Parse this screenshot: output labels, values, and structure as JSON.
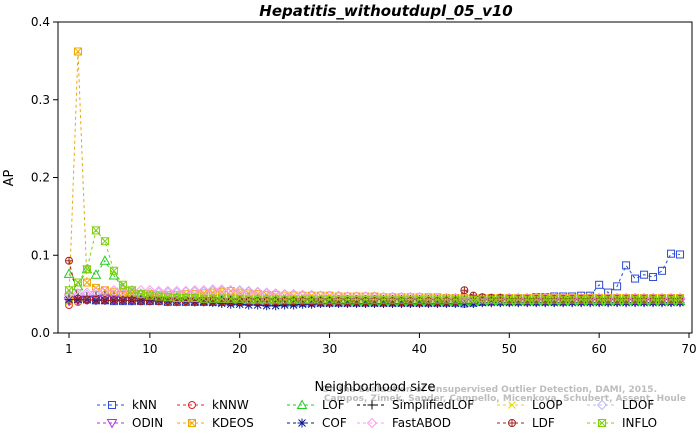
{
  "chart_data": {
    "type": "line",
    "title": "Hepatitis_withoutdupl_05_v10",
    "xlabel": "Neighborhood size",
    "ylabel": "AP",
    "xlim": [
      1,
      70
    ],
    "ylim": [
      0,
      0.4
    ],
    "xticks": [
      "1",
      "10",
      "20",
      "30",
      "40",
      "50",
      "60",
      "70"
    ],
    "yticks": [
      "0.0",
      "0.1",
      "0.2",
      "0.3",
      "0.4"
    ],
    "watermark": [
      "Campos, Zimek, Sander, Campello, Micenkova, Schubert, Assent, Houle",
      "On the Evaluation of Unsupervised Outlier Detection, DAMI, 2015."
    ],
    "legend_position": "bottom",
    "series": [
      {
        "name": "kNN",
        "color": "#2d4bd6",
        "marker": "square",
        "values": [
          0.043,
          0.044,
          0.043,
          0.042,
          0.042,
          0.041,
          0.041,
          0.041,
          0.041,
          0.041,
          0.041,
          0.04,
          0.04,
          0.04,
          0.04,
          0.04,
          0.04,
          0.04,
          0.04,
          0.04,
          0.04,
          0.04,
          0.039,
          0.039,
          0.039,
          0.039,
          0.039,
          0.039,
          0.039,
          0.039,
          0.039,
          0.039,
          0.039,
          0.039,
          0.039,
          0.039,
          0.039,
          0.039,
          0.039,
          0.039,
          0.039,
          0.039,
          0.039,
          0.039,
          0.038,
          0.039,
          0.04,
          0.041,
          0.042,
          0.043,
          0.044,
          0.045,
          0.046,
          0.046,
          0.047,
          0.047,
          0.047,
          0.048,
          0.048,
          0.062,
          0.052,
          0.06,
          0.087,
          0.07,
          0.075,
          0.072,
          0.08,
          0.102,
          0.101
        ]
      },
      {
        "name": "kNNW",
        "color": "#e02020",
        "marker": "circle",
        "values": [
          0.036,
          0.04,
          0.042,
          0.043,
          0.043,
          0.043,
          0.042,
          0.042,
          0.042,
          0.041,
          0.041,
          0.041,
          0.041,
          0.041,
          0.041,
          0.04,
          0.04,
          0.04,
          0.04,
          0.04,
          0.04,
          0.04,
          0.04,
          0.039,
          0.039,
          0.039,
          0.039,
          0.039,
          0.039,
          0.039,
          0.039,
          0.039,
          0.039,
          0.039,
          0.039,
          0.039,
          0.039,
          0.039,
          0.039,
          0.039,
          0.039,
          0.039,
          0.039,
          0.04,
          0.04,
          0.04,
          0.04,
          0.04,
          0.04,
          0.04,
          0.04,
          0.04,
          0.04,
          0.04,
          0.04,
          0.04,
          0.041,
          0.041,
          0.041,
          0.041,
          0.041,
          0.041,
          0.041,
          0.041,
          0.041,
          0.041,
          0.041,
          0.041,
          0.041
        ]
      },
      {
        "name": "LOF",
        "color": "#22cc22",
        "marker": "triangle-up",
        "values": [
          0.076,
          0.06,
          0.082,
          0.075,
          0.093,
          0.074,
          0.058,
          0.052,
          0.05,
          0.048,
          0.047,
          0.046,
          0.046,
          0.045,
          0.045,
          0.045,
          0.044,
          0.044,
          0.044,
          0.043,
          0.043,
          0.043,
          0.043,
          0.042,
          0.042,
          0.042,
          0.042,
          0.042,
          0.042,
          0.042,
          0.042,
          0.042,
          0.041,
          0.041,
          0.041,
          0.041,
          0.041,
          0.041,
          0.041,
          0.041,
          0.041,
          0.041,
          0.041,
          0.041,
          0.041,
          0.041,
          0.041,
          0.041,
          0.041,
          0.041,
          0.041,
          0.041,
          0.041,
          0.041,
          0.041,
          0.041,
          0.041,
          0.041,
          0.041,
          0.041,
          0.041,
          0.041,
          0.041,
          0.041,
          0.041,
          0.041,
          0.041,
          0.041,
          0.041
        ]
      },
      {
        "name": "SimplifiedLOF",
        "color": "#000000",
        "marker": "plus",
        "values": [
          0.045,
          0.046,
          0.047,
          0.048,
          0.05,
          0.048,
          0.046,
          0.045,
          0.044,
          0.044,
          0.044,
          0.044,
          0.044,
          0.044,
          0.044,
          0.044,
          0.044,
          0.044,
          0.043,
          0.043,
          0.043,
          0.043,
          0.043,
          0.043,
          0.043,
          0.043,
          0.043,
          0.043,
          0.043,
          0.043,
          0.043,
          0.043,
          0.043,
          0.043,
          0.043,
          0.043,
          0.043,
          0.043,
          0.043,
          0.043,
          0.043,
          0.043,
          0.043,
          0.043,
          0.043,
          0.043,
          0.043,
          0.043,
          0.043,
          0.043,
          0.043,
          0.043,
          0.043,
          0.043,
          0.043,
          0.043,
          0.043,
          0.043,
          0.043,
          0.043,
          0.043,
          0.043,
          0.043,
          0.043,
          0.043,
          0.043,
          0.043,
          0.043,
          0.043
        ]
      },
      {
        "name": "LoOP",
        "color": "#e6d800",
        "marker": "x",
        "values": [
          0.04,
          0.041,
          0.042,
          0.042,
          0.043,
          0.043,
          0.043,
          0.043,
          0.043,
          0.043,
          0.042,
          0.042,
          0.042,
          0.042,
          0.042,
          0.042,
          0.042,
          0.042,
          0.042,
          0.042,
          0.042,
          0.042,
          0.042,
          0.042,
          0.042,
          0.042,
          0.042,
          0.042,
          0.042,
          0.042,
          0.042,
          0.042,
          0.042,
          0.042,
          0.042,
          0.042,
          0.042,
          0.042,
          0.042,
          0.042,
          0.042,
          0.042,
          0.042,
          0.042,
          0.042,
          0.042,
          0.042,
          0.042,
          0.042,
          0.042,
          0.042,
          0.042,
          0.042,
          0.042,
          0.042,
          0.042,
          0.042,
          0.042,
          0.042,
          0.042,
          0.042,
          0.042,
          0.042,
          0.042,
          0.042,
          0.042,
          0.042,
          0.042,
          0.042
        ]
      },
      {
        "name": "LDOF",
        "color": "#b8b8ff",
        "marker": "diamond",
        "values": [
          0.048,
          0.048,
          0.049,
          0.049,
          0.05,
          0.05,
          0.05,
          0.051,
          0.051,
          0.052,
          0.052,
          0.052,
          0.052,
          0.053,
          0.053,
          0.053,
          0.054,
          0.054,
          0.054,
          0.055,
          0.054,
          0.053,
          0.052,
          0.051,
          0.05,
          0.05,
          0.049,
          0.049,
          0.048,
          0.048,
          0.048,
          0.047,
          0.047,
          0.047,
          0.047,
          0.046,
          0.046,
          0.046,
          0.046,
          0.046,
          0.045,
          0.045,
          0.045,
          0.045,
          0.045,
          0.045,
          0.045,
          0.045,
          0.045,
          0.045,
          0.045,
          0.045,
          0.045,
          0.045,
          0.045,
          0.045,
          0.045,
          0.045,
          0.045,
          0.045,
          0.045,
          0.045,
          0.045,
          0.045,
          0.045,
          0.045,
          0.045,
          0.045,
          0.045
        ]
      },
      {
        "name": "ODIN",
        "color": "#b030e0",
        "marker": "triangle-down",
        "values": [
          0.041,
          0.042,
          0.043,
          0.043,
          0.044,
          0.043,
          0.043,
          0.042,
          0.042,
          0.042,
          0.042,
          0.041,
          0.041,
          0.041,
          0.041,
          0.041,
          0.041,
          0.04,
          0.04,
          0.04,
          0.04,
          0.04,
          0.04,
          0.04,
          0.04,
          0.04,
          0.04,
          0.04,
          0.04,
          0.04,
          0.04,
          0.04,
          0.04,
          0.04,
          0.04,
          0.04,
          0.04,
          0.04,
          0.04,
          0.04,
          0.04,
          0.04,
          0.04,
          0.04,
          0.04,
          0.04,
          0.04,
          0.04,
          0.04,
          0.04,
          0.04,
          0.04,
          0.04,
          0.04,
          0.04,
          0.04,
          0.04,
          0.04,
          0.04,
          0.04,
          0.04,
          0.04,
          0.04,
          0.04,
          0.04,
          0.04,
          0.04,
          0.04,
          0.04
        ]
      },
      {
        "name": "KDEOS",
        "color": "#f0a800",
        "marker": "box-x",
        "values": [
          0.043,
          0.362,
          0.065,
          0.058,
          0.055,
          0.053,
          0.052,
          0.051,
          0.05,
          0.05,
          0.049,
          0.049,
          0.049,
          0.05,
          0.05,
          0.051,
          0.052,
          0.053,
          0.054,
          0.052,
          0.051,
          0.05,
          0.049,
          0.049,
          0.048,
          0.048,
          0.048,
          0.048,
          0.048,
          0.048,
          0.047,
          0.047,
          0.047,
          0.047,
          0.047,
          0.046,
          0.046,
          0.046,
          0.046,
          0.046,
          0.046,
          0.046,
          0.045,
          0.045,
          0.045,
          0.045,
          0.045,
          0.045,
          0.045,
          0.045,
          0.045,
          0.045,
          0.045,
          0.045,
          0.045,
          0.045,
          0.045,
          0.045,
          0.045,
          0.045,
          0.045,
          0.045,
          0.045,
          0.045,
          0.045,
          0.045,
          0.045,
          0.045,
          0.045
        ]
      },
      {
        "name": "COF",
        "color": "#0a1a8c",
        "marker": "asterisk",
        "values": [
          0.043,
          0.043,
          0.043,
          0.042,
          0.042,
          0.042,
          0.042,
          0.042,
          0.042,
          0.042,
          0.042,
          0.041,
          0.041,
          0.041,
          0.04,
          0.04,
          0.039,
          0.038,
          0.037,
          0.037,
          0.036,
          0.036,
          0.035,
          0.035,
          0.036,
          0.036,
          0.037,
          0.037,
          0.038,
          0.038,
          0.038,
          0.038,
          0.038,
          0.038,
          0.038,
          0.038,
          0.038,
          0.038,
          0.038,
          0.038,
          0.038,
          0.038,
          0.038,
          0.038,
          0.038,
          0.038,
          0.039,
          0.039,
          0.039,
          0.039,
          0.039,
          0.039,
          0.039,
          0.039,
          0.039,
          0.039,
          0.039,
          0.039,
          0.039,
          0.039,
          0.039,
          0.039,
          0.039,
          0.039,
          0.039,
          0.039,
          0.039,
          0.039,
          0.039
        ]
      },
      {
        "name": "FastABOD",
        "color": "#ff9cf2",
        "marker": "diamond",
        "values": [
          0.05,
          0.051,
          0.052,
          0.053,
          0.054,
          0.055,
          0.055,
          0.055,
          0.055,
          0.055,
          0.054,
          0.054,
          0.054,
          0.054,
          0.055,
          0.055,
          0.056,
          0.056,
          0.055,
          0.054,
          0.053,
          0.052,
          0.051,
          0.05,
          0.05,
          0.049,
          0.049,
          0.048,
          0.048,
          0.048,
          0.047,
          0.047,
          0.047,
          0.047,
          0.046,
          0.046,
          0.046,
          0.046,
          0.046,
          0.046,
          0.045,
          0.045,
          0.045,
          0.045,
          0.045,
          0.045,
          0.045,
          0.045,
          0.045,
          0.045,
          0.045,
          0.045,
          0.045,
          0.045,
          0.045,
          0.045,
          0.045,
          0.045,
          0.045,
          0.045,
          0.045,
          0.045,
          0.045,
          0.045,
          0.045,
          0.045,
          0.045,
          0.045,
          0.045
        ]
      },
      {
        "name": "LDF",
        "color": "#a02020",
        "marker": "circle-plus",
        "values": [
          0.093,
          0.044,
          0.043,
          0.043,
          0.042,
          0.042,
          0.042,
          0.042,
          0.041,
          0.041,
          0.041,
          0.041,
          0.041,
          0.041,
          0.041,
          0.041,
          0.041,
          0.041,
          0.041,
          0.041,
          0.041,
          0.041,
          0.041,
          0.041,
          0.041,
          0.041,
          0.041,
          0.041,
          0.041,
          0.041,
          0.041,
          0.041,
          0.041,
          0.041,
          0.041,
          0.041,
          0.041,
          0.041,
          0.041,
          0.041,
          0.041,
          0.041,
          0.041,
          0.041,
          0.055,
          0.048,
          0.046,
          0.045,
          0.045,
          0.044,
          0.044,
          0.044,
          0.044,
          0.044,
          0.044,
          0.044,
          0.044,
          0.044,
          0.044,
          0.044,
          0.044,
          0.044,
          0.044,
          0.044,
          0.044,
          0.044,
          0.044,
          0.044,
          0.044
        ]
      },
      {
        "name": "INFLO",
        "color": "#80d010",
        "marker": "hourglass",
        "values": [
          0.055,
          0.065,
          0.082,
          0.132,
          0.118,
          0.08,
          0.062,
          0.055,
          0.05,
          0.048,
          0.047,
          0.046,
          0.045,
          0.045,
          0.045,
          0.044,
          0.044,
          0.044,
          0.044,
          0.044,
          0.043,
          0.043,
          0.043,
          0.043,
          0.043,
          0.043,
          0.043,
          0.043,
          0.043,
          0.043,
          0.043,
          0.043,
          0.043,
          0.043,
          0.043,
          0.043,
          0.043,
          0.043,
          0.043,
          0.043,
          0.043,
          0.043,
          0.043,
          0.043,
          0.043,
          0.043,
          0.043,
          0.043,
          0.043,
          0.043,
          0.043,
          0.043,
          0.043,
          0.043,
          0.043,
          0.043,
          0.043,
          0.043,
          0.043,
          0.043,
          0.043,
          0.043,
          0.043,
          0.043,
          0.043,
          0.043,
          0.043,
          0.043,
          0.043
        ]
      }
    ]
  }
}
